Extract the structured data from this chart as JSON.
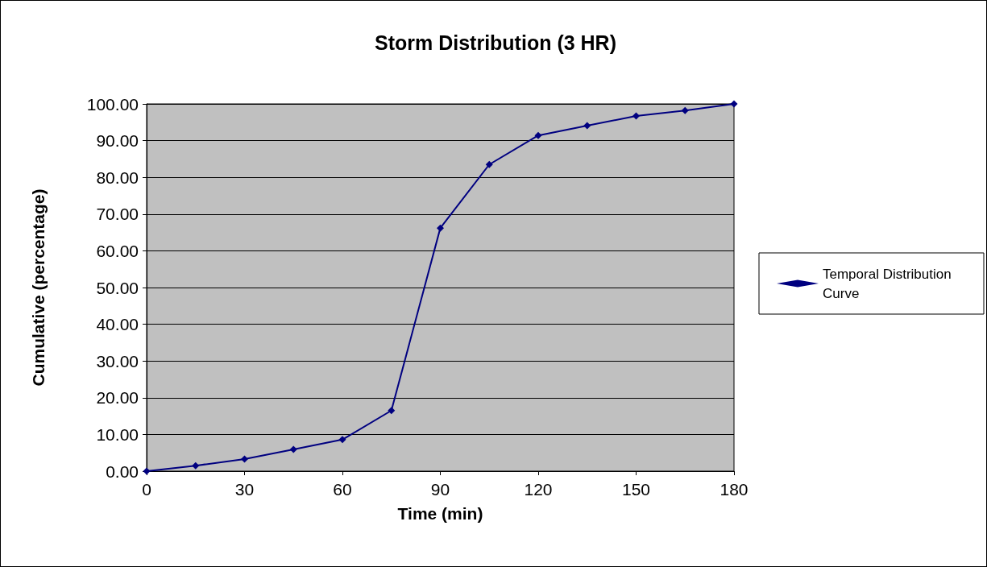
{
  "chart_data": {
    "type": "line",
    "title": "Storm Distribution (3 HR)",
    "xlabel": "Time (min)",
    "ylabel": "Cumulative (percentage)",
    "x": [
      0,
      15,
      30,
      45,
      60,
      75,
      90,
      105,
      120,
      135,
      150,
      165,
      180
    ],
    "series": [
      {
        "name": "Temporal Distribution Curve",
        "color": "#000080",
        "values": [
          0,
          1.5,
          3.3,
          5.9,
          8.6,
          16.5,
          66.2,
          83.5,
          91.4,
          94.1,
          96.7,
          98.2,
          100
        ]
      }
    ],
    "xlim": [
      0,
      180
    ],
    "xticks": [
      0,
      30,
      60,
      90,
      120,
      150,
      180
    ],
    "ylim": [
      0,
      100
    ],
    "yticks": [
      {
        "value": 0,
        "label": "0.00"
      },
      {
        "value": 10,
        "label": "10.00"
      },
      {
        "value": 20,
        "label": "20.00"
      },
      {
        "value": 30,
        "label": "30.00"
      },
      {
        "value": 40,
        "label": "40.00"
      },
      {
        "value": 50,
        "label": "50.00"
      },
      {
        "value": 60,
        "label": "60.00"
      },
      {
        "value": 70,
        "label": "70.00"
      },
      {
        "value": 80,
        "label": "80.00"
      },
      {
        "value": 90,
        "label": "90.00"
      },
      {
        "value": 100,
        "label": "100.00"
      }
    ],
    "grid": "y",
    "legend": "right",
    "marker": "diamond",
    "line_style": "solid"
  }
}
